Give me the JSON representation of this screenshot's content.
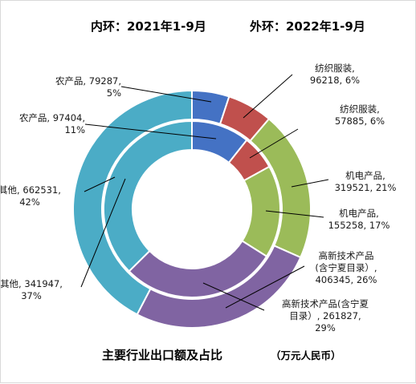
{
  "chart_data": {
    "type": "donut",
    "headers": {
      "inner": "内环：2021年1-9月",
      "outer": "外环：2022年1-9月"
    },
    "title": "主要行业出口额及占比",
    "unit": "（万元人民币）",
    "categories": [
      "农产品",
      "纺织服装",
      "机电产品",
      "高新技术产品（含宁夏目录）",
      "其他"
    ],
    "colors": [
      "#4472c4",
      "#c0504d",
      "#9bbb59",
      "#8064a2",
      "#4bacc6"
    ],
    "series": [
      {
        "ring": "outer",
        "values": [
          79287,
          96218,
          319521,
          406345,
          662531
        ],
        "percents": [
          "5%",
          "6%",
          "21%",
          "26%",
          "42%"
        ]
      },
      {
        "ring": "inner",
        "values": [
          97404,
          57885,
          155258,
          261827,
          341947
        ],
        "percents": [
          "11%",
          "6%",
          "17%",
          "29%",
          "37%"
        ]
      }
    ],
    "labels": {
      "outer": [
        [
          "农产品, 79287,",
          "5%"
        ],
        [
          "纺织服装,",
          "96218, 6%"
        ],
        [
          "机电产品,",
          "319521, 21%"
        ],
        [
          "高新技术产品",
          "(含宁夏目录）,",
          "406345, 26%"
        ],
        [
          "其他, 662531,",
          "42%"
        ]
      ],
      "inner": [
        [
          "农产品, 97404,",
          "11%"
        ],
        [
          "纺织服装,",
          "57885, 6%"
        ],
        [
          "机电产品,",
          "155258, 17%"
        ],
        [
          "高新技术产品(含宁夏",
          "目录）, 261827,",
          "29%"
        ],
        [
          "其他, 341947,",
          "37%"
        ]
      ]
    }
  }
}
